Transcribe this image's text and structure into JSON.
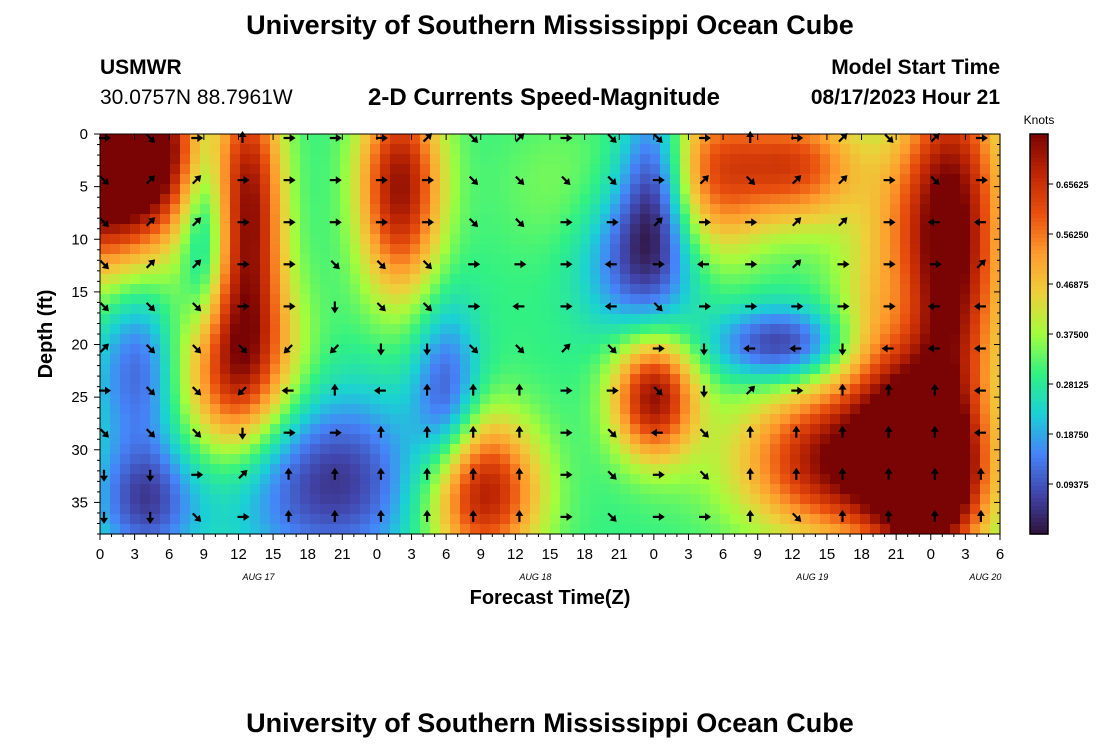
{
  "header": {
    "title": "University of Southern Mississippi Ocean Cube",
    "station_id": "USMWR",
    "station_coords": "30.0757N  88.7961W",
    "subtitle": "2-D Currents Speed-Magnitude",
    "model_start_label": "Model Start Time",
    "model_start_value": "08/17/2023 Hour 21"
  },
  "footer": {
    "title": "University of Southern Mississippi Ocean Cube"
  },
  "chart_data": {
    "type": "heatmap",
    "title": "2-D Currents Speed-Magnitude",
    "xlabel": "Forecast Time(Z)",
    "ylabel": "Depth (ft)",
    "ylim": [
      0,
      38
    ],
    "y_ticks": [
      0,
      5,
      10,
      15,
      20,
      25,
      30,
      35
    ],
    "x_start_hour": 0,
    "x_end_hour": 78,
    "x_tick_step_hours": 3,
    "x_tick_labels": [
      "0",
      "3",
      "6",
      "9",
      "12",
      "15",
      "18",
      "21",
      "0",
      "3",
      "6",
      "9",
      "12",
      "15",
      "18",
      "21",
      "0",
      "3",
      "6",
      "9",
      "12",
      "15",
      "18",
      "21",
      "0",
      "3",
      "6"
    ],
    "date_labels": [
      {
        "hour": 12,
        "label": "AUG 17"
      },
      {
        "hour": 36,
        "label": "AUG 18"
      },
      {
        "hour": 60,
        "label": "AUG 19"
      },
      {
        "hour": 75,
        "label": "AUG 20"
      }
    ],
    "colorbar": {
      "title": "Knots",
      "min": 0.0,
      "max": 0.75,
      "tick_values": [
        0.09375,
        0.1875,
        0.28125,
        0.375,
        0.46875,
        0.5625,
        0.65625
      ],
      "tick_labels": [
        "0.09375",
        "0.18750",
        "0.28125",
        "0.37500",
        "0.46875",
        "0.56250",
        "0.65625"
      ]
    },
    "speed_blobs": [
      {
        "hour": 0,
        "depth": 4,
        "speed": 0.72,
        "sx": 5,
        "sy": 7
      },
      {
        "hour": 3,
        "depth": 1,
        "speed": 0.7,
        "sx": 4,
        "sy": 5
      },
      {
        "hour": 9,
        "depth": 10,
        "speed": 0.12,
        "sx": 1.5,
        "sy": 9
      },
      {
        "hour": 13,
        "depth": 7,
        "speed": 0.7,
        "sx": 2,
        "sy": 9
      },
      {
        "hour": 11,
        "depth": 22,
        "speed": 0.7,
        "sx": 4,
        "sy": 6
      },
      {
        "hour": 4,
        "depth": 22,
        "speed": 0.05,
        "sx": 3,
        "sy": 6
      },
      {
        "hour": 4,
        "depth": 35,
        "speed": 0.08,
        "sx": 3,
        "sy": 4
      },
      {
        "hour": 20,
        "depth": 33,
        "speed": 0.05,
        "sx": 6,
        "sy": 6
      },
      {
        "hour": 26,
        "depth": 5,
        "speed": 0.72,
        "sx": 2.5,
        "sy": 7
      },
      {
        "hour": 30,
        "depth": 25,
        "speed": 0.1,
        "sx": 2,
        "sy": 6
      },
      {
        "hour": 33,
        "depth": 34,
        "speed": 0.72,
        "sx": 3.5,
        "sy": 5
      },
      {
        "hour": 40,
        "depth": 5,
        "speed": 0.35,
        "sx": 4,
        "sy": 5
      },
      {
        "hour": 47,
        "depth": 12,
        "speed": 0.08,
        "sx": 3.5,
        "sy": 5
      },
      {
        "hour": 48,
        "depth": 4,
        "speed": 0.1,
        "sx": 2,
        "sy": 6
      },
      {
        "hour": 48,
        "depth": 25,
        "speed": 0.72,
        "sx": 2.5,
        "sy": 4
      },
      {
        "hour": 53,
        "depth": 4,
        "speed": 0.55,
        "sx": 3,
        "sy": 6
      },
      {
        "hour": 60,
        "depth": 3,
        "speed": 0.62,
        "sx": 4,
        "sy": 4
      },
      {
        "hour": 59,
        "depth": 20,
        "speed": 0.05,
        "sx": 4,
        "sy": 2.5
      },
      {
        "hour": 64,
        "depth": 31,
        "speed": 0.72,
        "sx": 6,
        "sy": 5
      },
      {
        "hour": 71,
        "depth": 22,
        "speed": 0.72,
        "sx": 4,
        "sy": 12
      },
      {
        "hour": 74,
        "depth": 6,
        "speed": 0.65,
        "sx": 3,
        "sy": 10
      },
      {
        "hour": 72,
        "depth": 33,
        "speed": 0.72,
        "sx": 3,
        "sy": 5
      },
      {
        "hour": 70,
        "depth": 17,
        "speed": 0.15,
        "sx": 2,
        "sy": 5
      }
    ],
    "background_speed": 0.3,
    "arrow_hours": [
      0,
      4,
      8,
      12,
      16,
      20,
      24,
      28,
      32,
      36,
      40,
      44,
      48,
      52,
      56,
      60,
      64,
      68,
      72,
      76
    ],
    "arrow_depths": [
      0,
      4,
      8,
      12,
      16,
      20,
      24,
      28,
      32,
      36
    ],
    "arrow_directions_deg": [
      [
        90,
        135,
        90,
        0,
        90,
        90,
        90,
        45,
        135,
        45,
        90,
        135,
        135,
        90,
        0,
        90,
        45,
        135,
        45,
        90
      ],
      [
        135,
        45,
        45,
        90,
        90,
        90,
        90,
        90,
        135,
        135,
        135,
        135,
        90,
        45,
        135,
        45,
        45,
        90,
        135,
        90
      ],
      [
        135,
        45,
        45,
        90,
        90,
        90,
        90,
        90,
        135,
        135,
        90,
        90,
        45,
        90,
        90,
        45,
        45,
        90,
        270,
        270
      ],
      [
        135,
        45,
        45,
        90,
        90,
        135,
        135,
        135,
        90,
        90,
        90,
        270,
        90,
        270,
        90,
        45,
        90,
        90,
        90,
        45
      ],
      [
        135,
        135,
        135,
        90,
        90,
        180,
        135,
        135,
        90,
        270,
        90,
        270,
        135,
        90,
        90,
        90,
        90,
        90,
        270,
        270
      ],
      [
        45,
        135,
        135,
        135,
        225,
        225,
        180,
        180,
        135,
        135,
        45,
        135,
        90,
        180,
        270,
        270,
        180,
        270,
        270,
        270
      ],
      [
        90,
        135,
        135,
        225,
        270,
        0,
        270,
        0,
        0,
        0,
        90,
        90,
        135,
        180,
        45,
        90,
        0,
        0,
        0,
        270
      ],
      [
        135,
        135,
        135,
        180,
        90,
        90,
        0,
        0,
        0,
        0,
        90,
        135,
        270,
        135,
        0,
        0,
        0,
        0,
        0,
        270
      ],
      [
        180,
        180,
        90,
        45,
        0,
        0,
        0,
        0,
        0,
        0,
        90,
        135,
        90,
        135,
        0,
        0,
        0,
        0,
        0,
        0
      ],
      [
        180,
        180,
        135,
        90,
        0,
        0,
        0,
        0,
        0,
        0,
        90,
        135,
        90,
        90,
        0,
        135,
        0,
        0,
        0,
        0
      ]
    ]
  }
}
